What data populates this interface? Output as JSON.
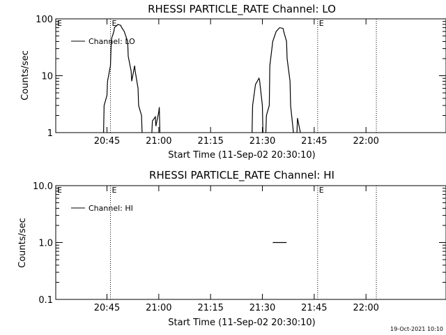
{
  "chart_data": [
    {
      "type": "line",
      "title": "RHESSI PARTICLE_RATE Channel: LO",
      "xlabel": "Start Time (11-Sep-02 20:30:10)",
      "ylabel": "Counts/sec",
      "yscale": "log",
      "ylim": [
        1,
        100
      ],
      "xlim_minutes": [
        0,
        113
      ],
      "x_ticks": [
        "20:45",
        "21:00",
        "21:15",
        "21:30",
        "21:45",
        "22:00"
      ],
      "y_ticks": [
        "1",
        "10",
        "100"
      ],
      "legend": {
        "position": "top-left",
        "entries": [
          "Channel: LO"
        ]
      },
      "event_markers": [
        {
          "time": "20:46",
          "label": "E"
        },
        {
          "time": "21:46",
          "label": "E"
        },
        {
          "time": "22:03",
          "label": ""
        }
      ],
      "series": [
        {
          "name": "Channel: LO",
          "segments": [
            [
              [
                "20:44",
                1
              ],
              [
                "20:44",
                3
              ],
              [
                "20:45",
                4.5
              ],
              [
                "20:45",
                8
              ],
              [
                "20:46",
                15
              ],
              [
                "20:46",
                30
              ],
              [
                "20:46",
                45
              ],
              [
                "20:47",
                60
              ],
              [
                "20:47",
                70
              ],
              [
                "20:48",
                78
              ],
              [
                "20:48",
                80
              ],
              [
                "20:49",
                77
              ],
              [
                "20:49",
                72
              ],
              [
                "20:50",
                60
              ],
              [
                "20:51",
                40
              ],
              [
                "20:51",
                22
              ],
              [
                "20:52",
                12
              ],
              [
                "20:52",
                8
              ],
              [
                "20:53",
                15
              ],
              [
                "20:53",
                12
              ],
              [
                "20:54",
                6
              ],
              [
                "20:54",
                3
              ],
              [
                "20:55",
                2
              ],
              [
                "20:55",
                1
              ]
            ],
            [
              [
                "20:58",
                1
              ],
              [
                "20:58",
                1.6
              ],
              [
                "20:59",
                1.9
              ],
              [
                "20:59",
                1.3
              ],
              [
                "21:00",
                2.3
              ],
              [
                "21:00",
                2.8
              ],
              [
                "21:00",
                1
              ]
            ],
            [
              [
                "21:27",
                1
              ],
              [
                "21:27",
                3
              ],
              [
                "21:28",
                7
              ],
              [
                "21:29",
                9
              ],
              [
                "21:29",
                8.5
              ],
              [
                "21:30",
                3
              ],
              [
                "21:30",
                1
              ]
            ],
            [
              [
                "21:31",
                1
              ],
              [
                "21:31",
                2
              ],
              [
                "21:32",
                3
              ],
              [
                "21:32",
                15
              ],
              [
                "21:33",
                40
              ],
              [
                "21:34",
                60
              ],
              [
                "21:35",
                70
              ],
              [
                "21:36",
                68
              ],
              [
                "21:36",
                60
              ],
              [
                "21:37",
                40
              ],
              [
                "21:37",
                20
              ],
              [
                "21:38",
                8
              ],
              [
                "21:38",
                3
              ],
              [
                "21:39",
                1
              ]
            ],
            [
              [
                "21:40",
                1
              ],
              [
                "21:40",
                1.8
              ],
              [
                "21:41",
                1
              ]
            ]
          ]
        }
      ]
    },
    {
      "type": "line",
      "title": "RHESSI PARTICLE_RATE Channel: HI",
      "xlabel": "Start Time (11-Sep-02 20:30:10)",
      "ylabel": "Counts/sec",
      "yscale": "log",
      "ylim": [
        0.1,
        10
      ],
      "xlim_minutes": [
        0,
        113
      ],
      "x_ticks": [
        "20:45",
        "21:00",
        "21:15",
        "21:30",
        "21:45",
        "22:00"
      ],
      "y_ticks": [
        "0.1",
        "1.0",
        "10.0"
      ],
      "legend": {
        "position": "top-left",
        "entries": [
          "Channel: HI"
        ]
      },
      "event_markers": [
        {
          "time": "20:46",
          "label": "E"
        },
        {
          "time": "21:46",
          "label": "E"
        },
        {
          "time": "22:03",
          "label": ""
        }
      ],
      "series": [
        {
          "name": "Channel: HI",
          "segments": [
            [
              [
                "21:33",
                1.0
              ],
              [
                "21:37",
                1.0
              ]
            ]
          ]
        }
      ]
    }
  ],
  "footer": {
    "timestamp": "19-Oct-2021 10:10"
  }
}
